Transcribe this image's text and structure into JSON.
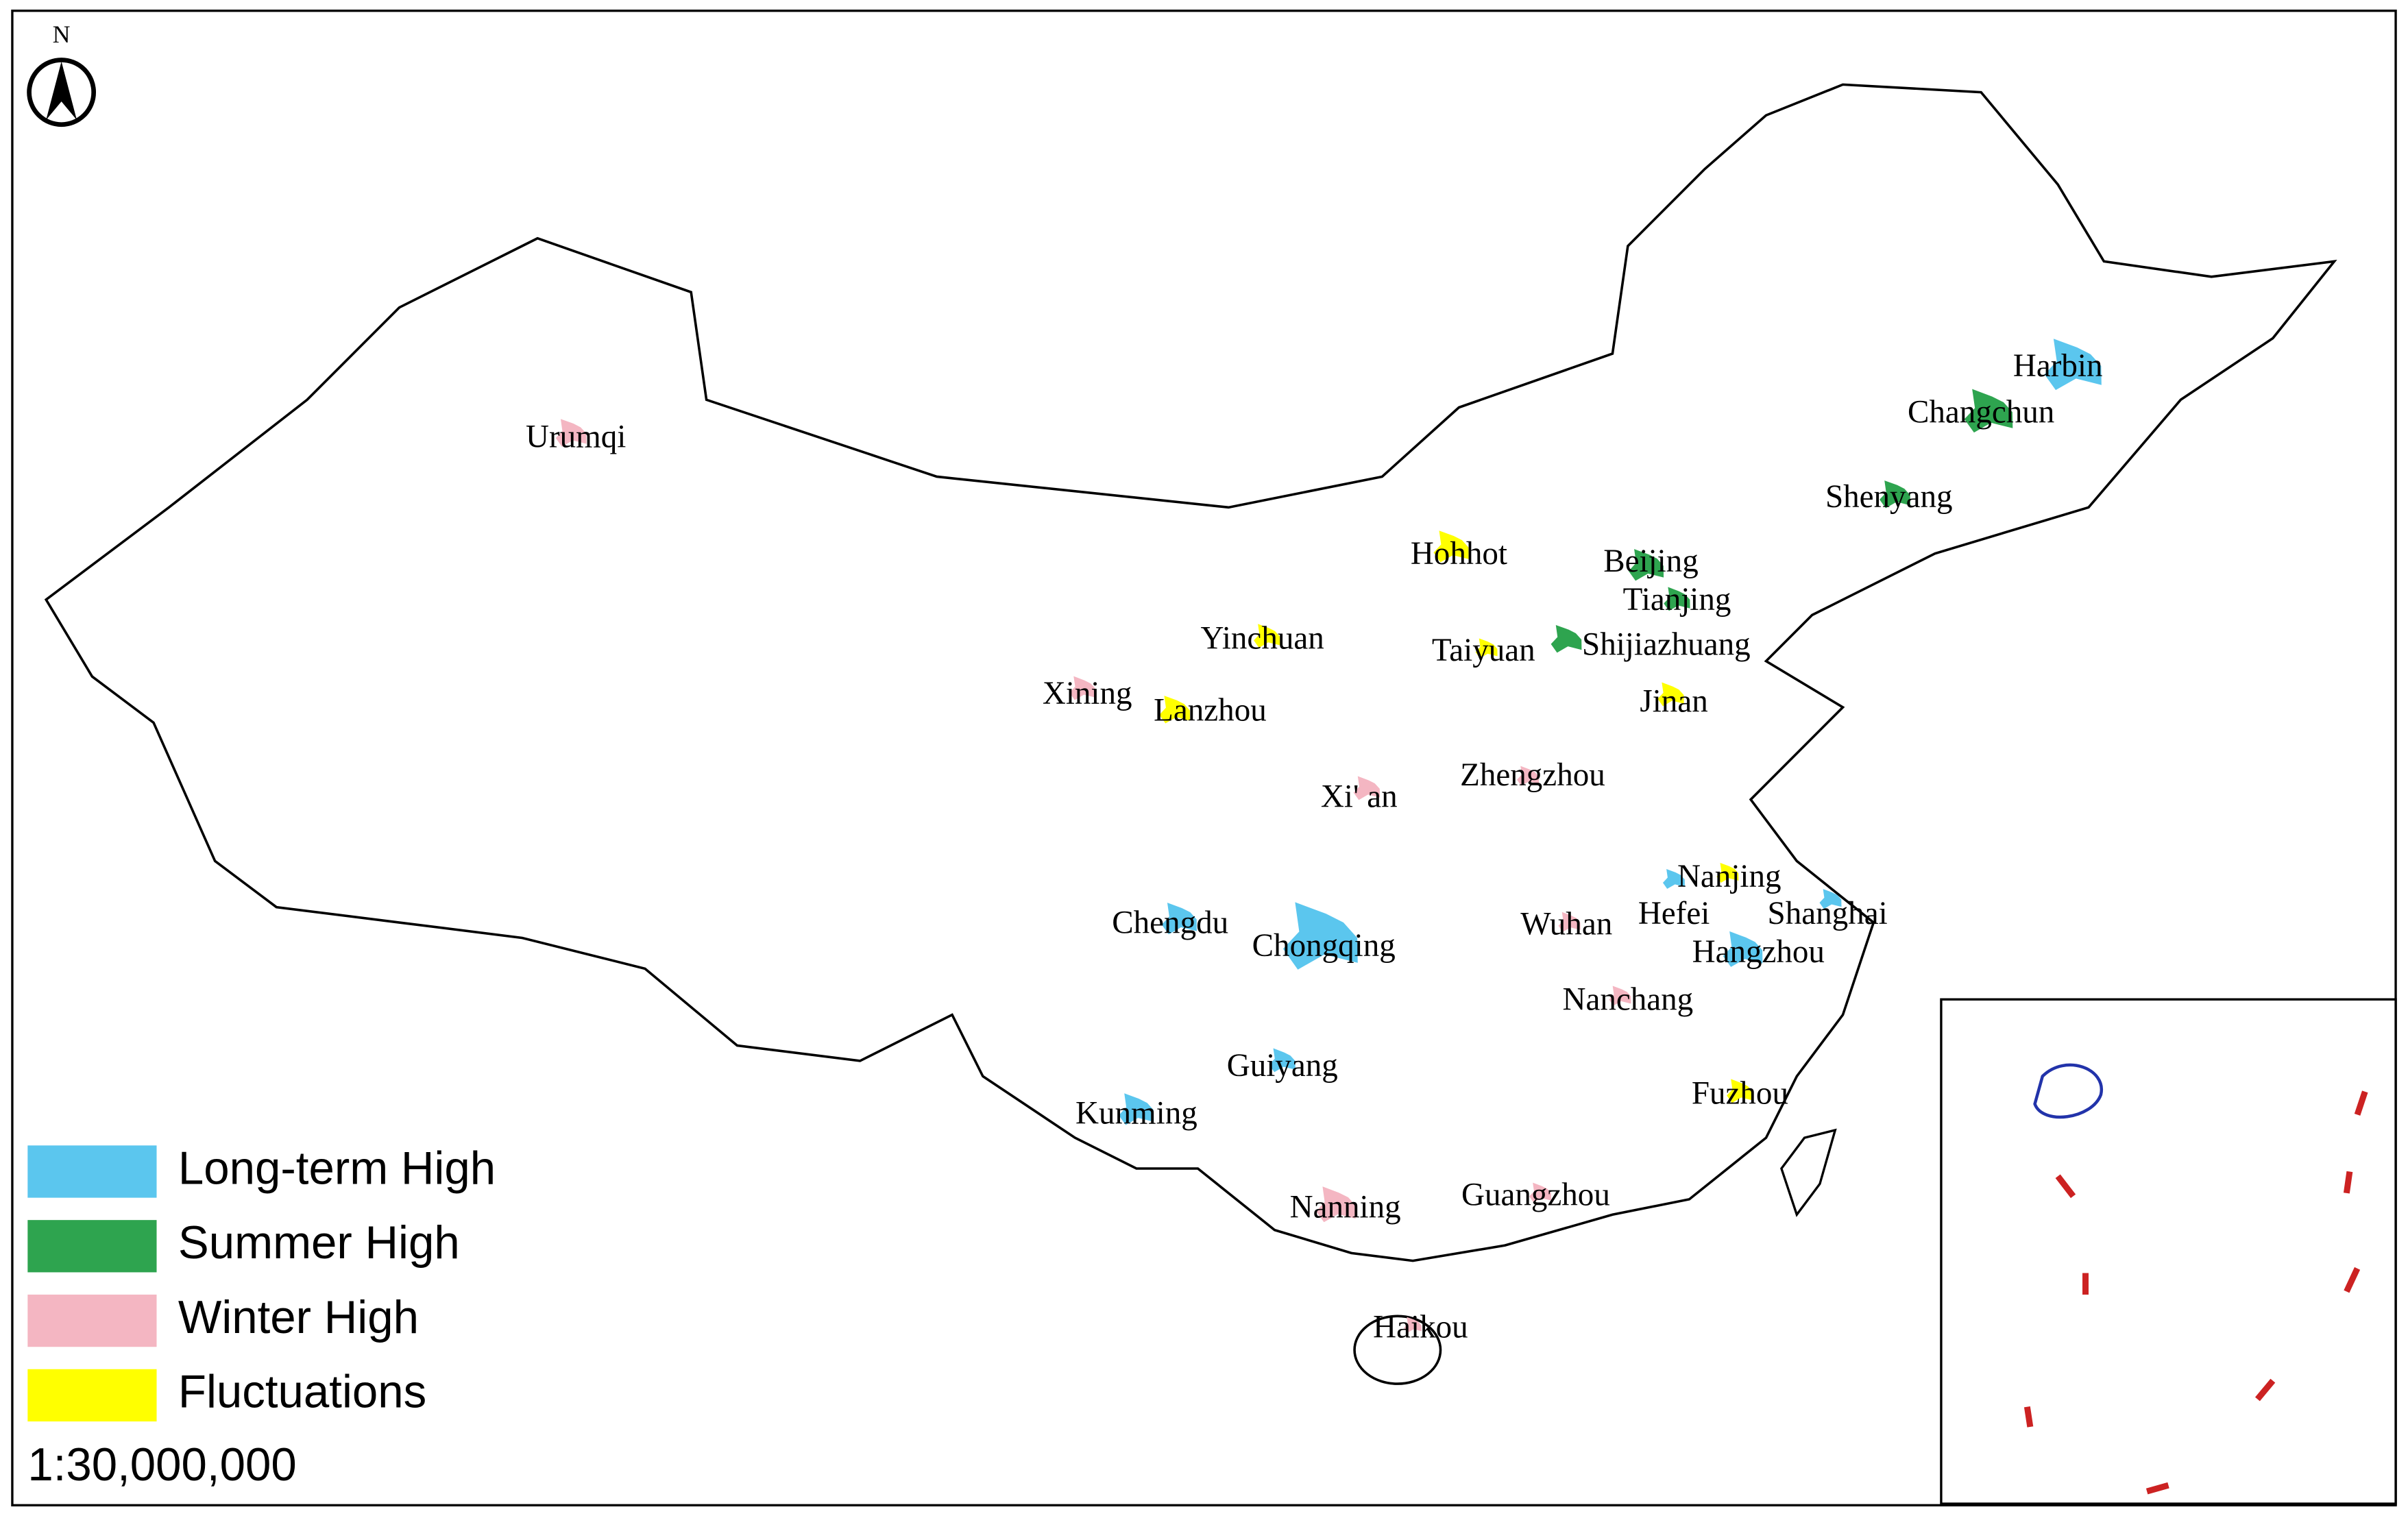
{
  "north": "N",
  "scale": "1:30,000,000",
  "categories": [
    {
      "label": "Long-term High",
      "color": "#5bc6ee",
      "cities": [
        "Harbin",
        "Chengdu",
        "Chongqing",
        "Guiyang",
        "Kunming",
        "Hefei",
        "Shanghai",
        "Hangzhou"
      ]
    },
    {
      "label": "Summer High",
      "color": "#2ea44f",
      "cities": [
        "Changchun",
        "Shenyang",
        "Beijing",
        "Tianjing",
        "Shijiazhuang"
      ]
    },
    {
      "label": "Winter High",
      "color": "#f4b6c2",
      "cities": [
        "Urumqi",
        "Xining",
        "Xi' an",
        "Zhengzhou",
        "Wuhan",
        "Nanchang",
        "Nanning",
        "Guangzhou",
        "Haikou"
      ]
    },
    {
      "label": "Fluctuations",
      "color": "#ffff00",
      "cities": [
        "Hohhot",
        "Yinchuan",
        "Lanzhou",
        "Taiyuan",
        "Jinan",
        "Nanjing",
        "Fuzhou"
      ]
    }
  ]
}
